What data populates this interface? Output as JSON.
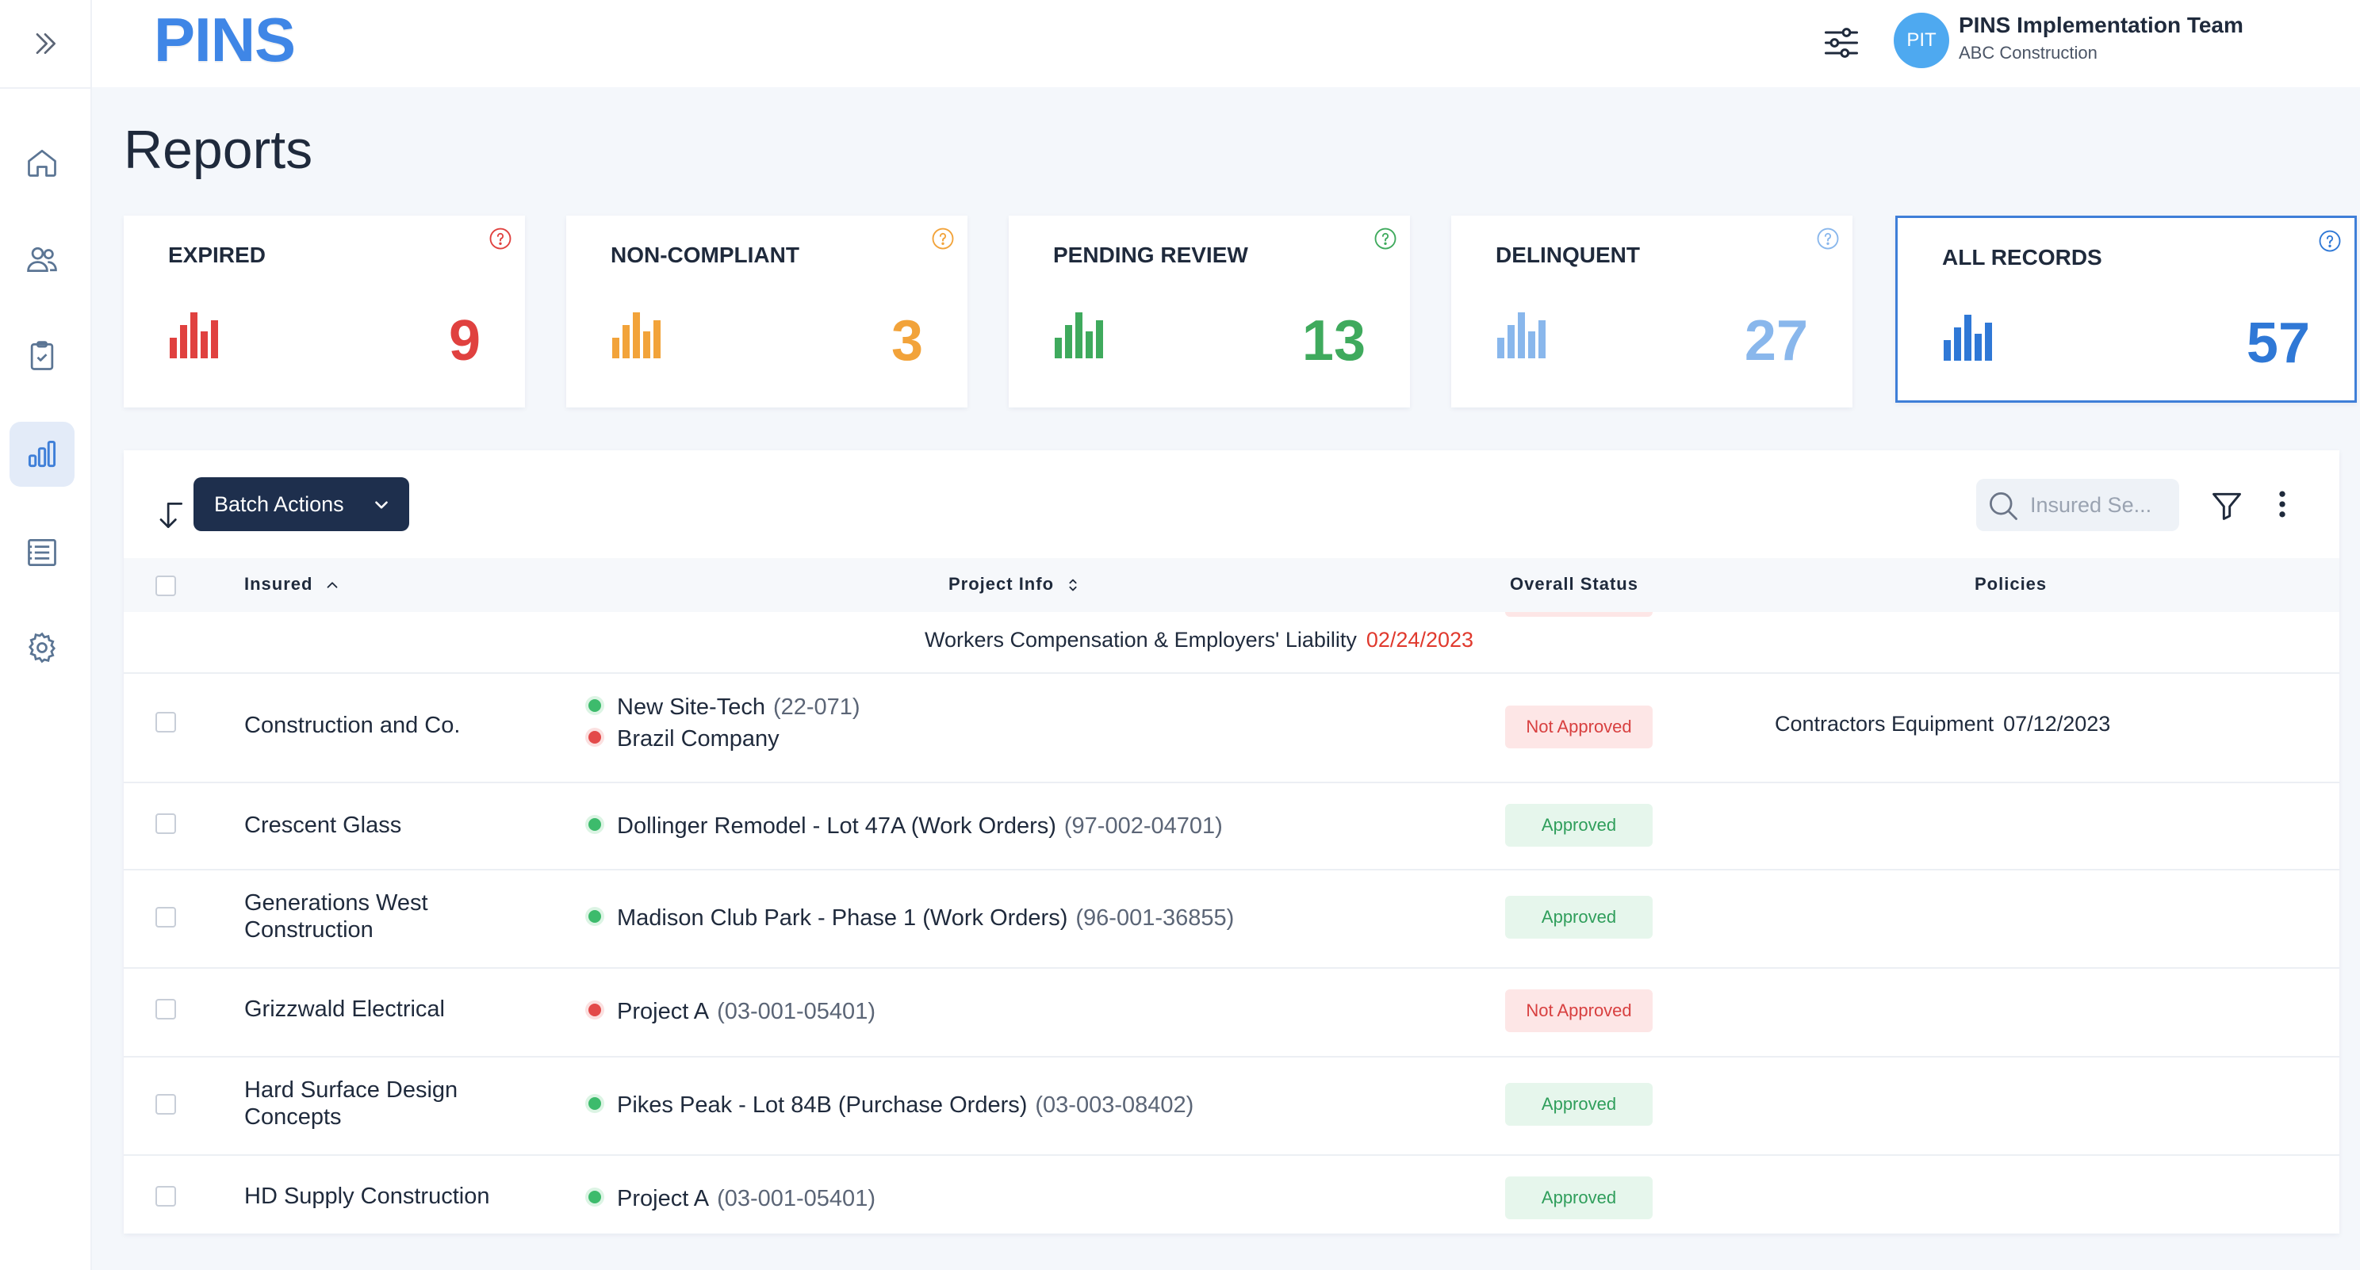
{
  "app": {
    "logo": "PINS",
    "user": {
      "initials": "PIT",
      "name": "PINS Implementation Team",
      "org": "ABC Construction"
    }
  },
  "sidebar": {
    "items": [
      {
        "icon": "home-icon"
      },
      {
        "icon": "users-icon"
      },
      {
        "icon": "clipboard-check-icon"
      },
      {
        "icon": "reports-chart-icon",
        "active": true
      },
      {
        "icon": "list-document-icon"
      },
      {
        "icon": "gear-icon"
      }
    ]
  },
  "page": {
    "title": "Reports"
  },
  "cards": [
    {
      "label": "EXPIRED",
      "value": "9",
      "color": "#e0413f"
    },
    {
      "label": "NON-COMPLIANT",
      "value": "3",
      "color": "#f2a33a"
    },
    {
      "label": "PENDING REVIEW",
      "value": "13",
      "color": "#3faa5d"
    },
    {
      "label": "DELINQUENT",
      "value": "27",
      "color": "#89b7ec"
    },
    {
      "label": "ALL RECORDS",
      "value": "57",
      "color": "#2f78d6",
      "selected": true
    }
  ],
  "toolbar": {
    "batch_label": "Batch Actions",
    "search_placeholder": "Insured Se..."
  },
  "table": {
    "headers": {
      "insured": "Insured",
      "project": "Project Info",
      "status": "Overall Status",
      "policies": "Policies"
    },
    "partial_row": {
      "policy_name": "Workers Compensation & Employers' Liability",
      "policy_date": "02/24/2023"
    },
    "rows": [
      {
        "insured": "Construction and Co.",
        "projects": [
          {
            "name": "New Site-Tech",
            "code": "(22-071)",
            "status": "green"
          },
          {
            "name": "Brazil Company",
            "code": "",
            "status": "red"
          }
        ],
        "status": "Not Approved",
        "policy_name": "Contractors Equipment",
        "policy_date": "07/12/2023"
      },
      {
        "insured": "Crescent Glass",
        "projects": [
          {
            "name": "Dollinger Remodel - Lot 47A (Work Orders)",
            "code": "(97-002-04701)",
            "status": "green"
          }
        ],
        "status": "Approved"
      },
      {
        "insured": "Generations West Construction",
        "insured_lines": [
          "Generations West",
          "Construction"
        ],
        "projects": [
          {
            "name": "Madison Club Park - Phase 1 (Work Orders)",
            "code": "(96-001-36855)",
            "status": "green"
          }
        ],
        "status": "Approved"
      },
      {
        "insured": "Grizzwald Electrical",
        "projects": [
          {
            "name": "Project A",
            "code": "(03-001-05401)",
            "status": "red"
          }
        ],
        "status": "Not Approved"
      },
      {
        "insured": "Hard Surface Design Concepts",
        "insured_lines": [
          "Hard Surface Design",
          "Concepts"
        ],
        "projects": [
          {
            "name": "Pikes Peak - Lot 84B (Purchase Orders)",
            "code": "(03-003-08402)",
            "status": "green"
          }
        ],
        "status": "Approved"
      },
      {
        "insured": "HD Supply Construction",
        "projects": [
          {
            "name": "Project A",
            "code": "(03-001-05401)",
            "status": "green"
          }
        ],
        "status": "Approved"
      }
    ]
  }
}
